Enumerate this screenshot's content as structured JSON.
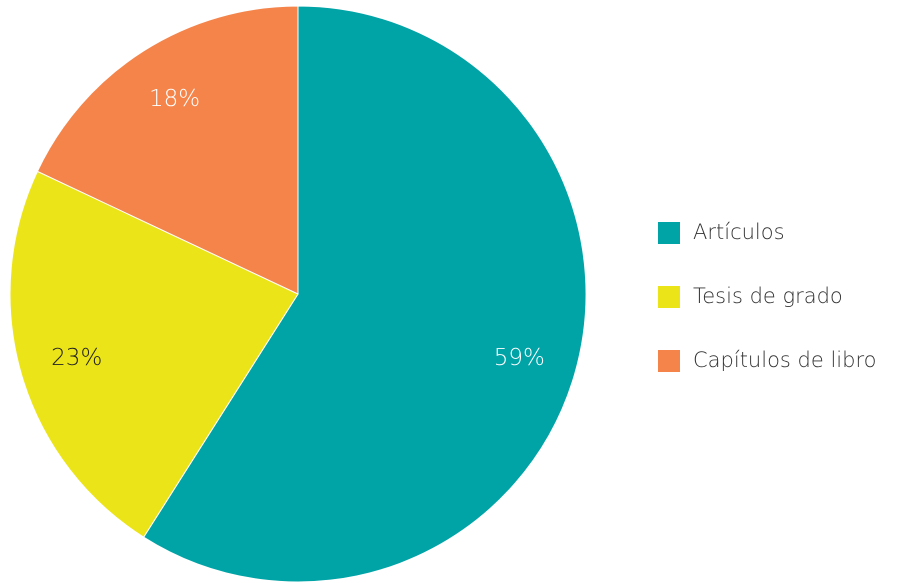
{
  "chart_data": {
    "type": "pie",
    "categories": [
      "Artículos",
      "Tesis de grado",
      "Capítulos de libro"
    ],
    "values": [
      59,
      23,
      18
    ],
    "value_labels": [
      "59%",
      "23%",
      "18%"
    ],
    "colors": [
      "#00a3a6",
      "#ebe418",
      "#f4844a"
    ],
    "label_colors": [
      "#ffffff",
      "#222222",
      "#ffffff"
    ],
    "legend": "right"
  }
}
